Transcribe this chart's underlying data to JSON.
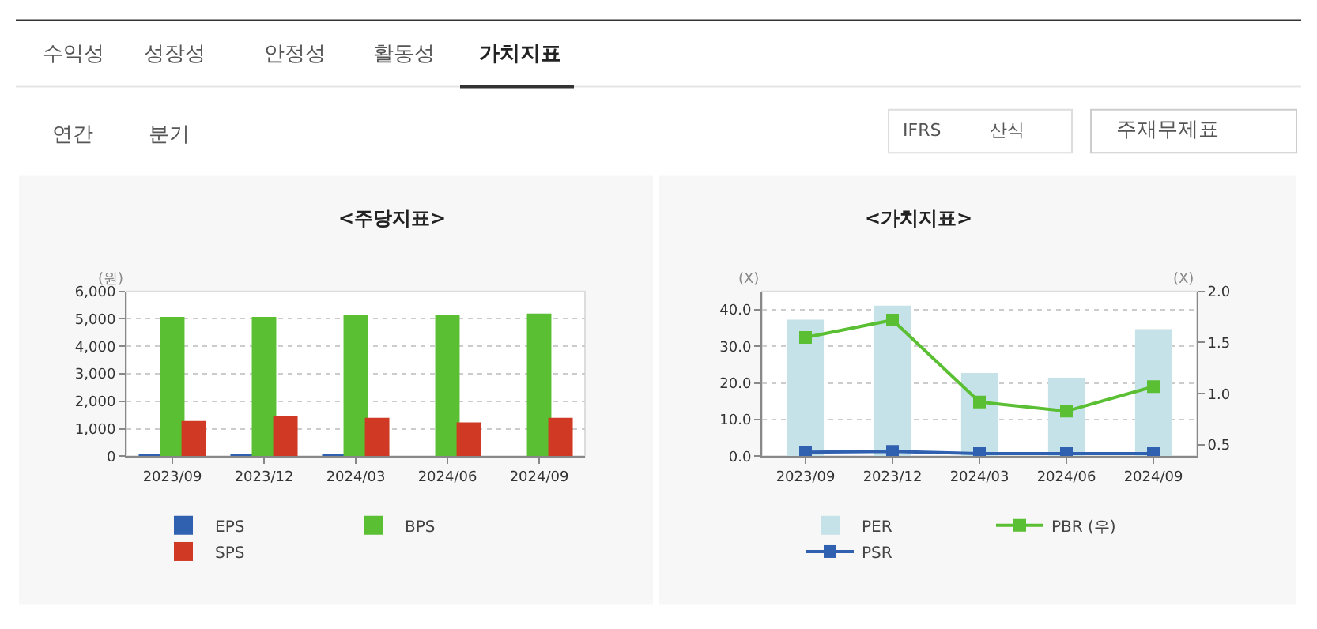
{
  "chart_data": [
    {
      "type": "other",
      "annotations": [
        "수익성",
        "성장성",
        "안정성",
        "활동성",
        "가치지표",
        "연간",
        "분기",
        "IFRS",
        "산식",
        "주재무제표"
      ]
    },
    {
      "type": "bar",
      "title": "<주당지표>",
      "ylabel": "(원)",
      "categories": [
        "2023/09",
        "2023/12",
        "2024/03",
        "2024/06",
        "2024/09"
      ],
      "ylim": [
        0,
        6000
      ],
      "yticks": [
        {
          "value": 0,
          "label": "0"
        },
        {
          "value": 1000,
          "label": "1,000"
        },
        {
          "value": 2000,
          "label": "2,000"
        },
        {
          "value": 3000,
          "label": "3,000"
        },
        {
          "value": 4000,
          "label": "4,000"
        },
        {
          "value": 5000,
          "label": "5,000"
        },
        {
          "value": 6000,
          "label": "6,000"
        }
      ],
      "grid": "y",
      "legend": "bottom",
      "series": [
        {
          "name": "EPS",
          "color": "#3060b0",
          "values": [
            40,
            40,
            40,
            0,
            0
          ]
        },
        {
          "name": "BPS",
          "color": "#5abf32",
          "values": [
            5070,
            5070,
            5130,
            5130,
            5190
          ]
        },
        {
          "name": "SPS",
          "color": "#d03a25",
          "values": [
            1280,
            1450,
            1400,
            1230,
            1400
          ]
        }
      ]
    },
    {
      "type": "bar",
      "title": "<가치지표>",
      "ylabel": "(X)",
      "y2label": "(X)",
      "categories": [
        "2023/09",
        "2023/12",
        "2024/03",
        "2024/06",
        "2024/09"
      ],
      "ylim": [
        0,
        45
      ],
      "yticks": [
        {
          "value": 0,
          "label": "0.0"
        },
        {
          "value": 10,
          "label": "10.0"
        },
        {
          "value": 20,
          "label": "20.0"
        },
        {
          "value": 30,
          "label": "30.0"
        },
        {
          "value": 40,
          "label": "40.0"
        }
      ],
      "y2lim": [
        0.39,
        2.0
      ],
      "y2ticks": [
        0.5,
        {
          "value": 1.0,
          "label": "1.0"
        },
        1.5,
        {
          "value": 2.0,
          "label": "2.0"
        }
      ],
      "grid": "y",
      "legend": "bottom",
      "marker": "square",
      "series": [
        {
          "name": "PER",
          "type": "bar",
          "color": "#c5e2e8",
          "values": [
            37.3,
            41.1,
            22.7,
            21.4,
            34.7
          ]
        },
        {
          "name": "PBR (우)",
          "type": "line",
          "axis": "y2",
          "color": "#5abf32",
          "values": [
            1.55,
            1.72,
            0.92,
            0.83,
            1.07
          ]
        },
        {
          "name": "PSR",
          "type": "line",
          "color": "#3060b0",
          "values": [
            1.1,
            1.3,
            0.7,
            0.7,
            0.7
          ]
        }
      ]
    }
  ]
}
